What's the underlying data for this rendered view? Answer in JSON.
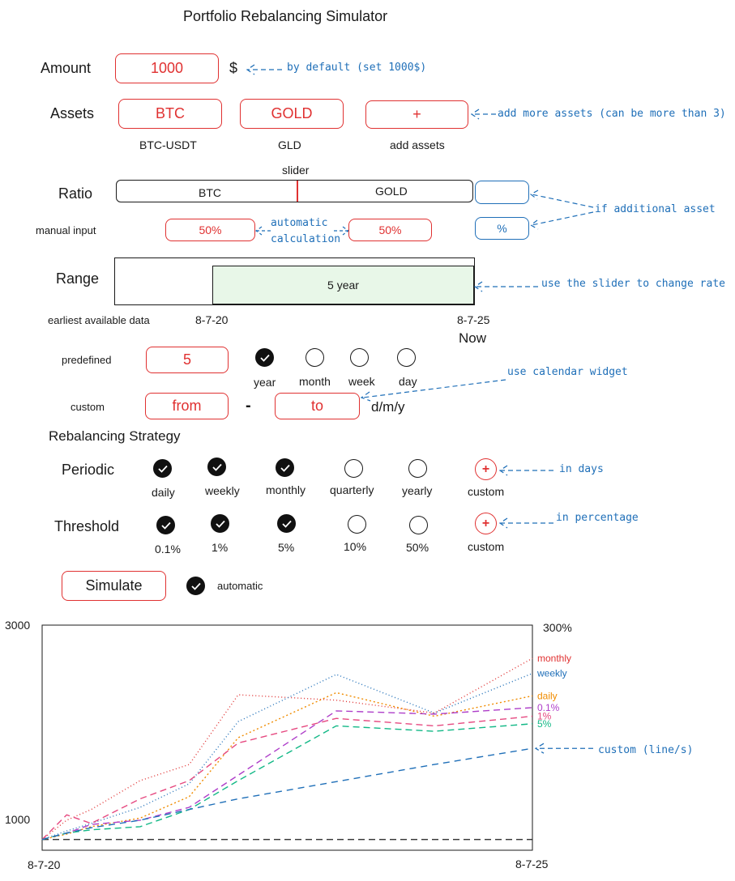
{
  "title": "Portfolio Rebalancing Simulator",
  "amount": {
    "label": "Amount",
    "value": "1000",
    "currency": "$",
    "note": "by default (set 1000$)"
  },
  "assets": {
    "label": "Assets",
    "items": [
      {
        "button": "BTC",
        "caption": "BTC-USDT"
      },
      {
        "button": "GOLD",
        "caption": "GLD"
      },
      {
        "button": "+",
        "caption": "add assets"
      }
    ],
    "note": "add more assets (can be more than 3)"
  },
  "ratio": {
    "slider_caption": "slider",
    "label": "Ratio",
    "left": "BTC",
    "right": "GOLD",
    "manual_label": "manual input",
    "left_pct": "50%",
    "right_pct": "50%",
    "auto_note_1": "automatic",
    "auto_note_2": "calculation",
    "extra_pct": "%",
    "extra_note": "if additional asset"
  },
  "range": {
    "label": "Range",
    "selected": "5 year",
    "earliest_label": "earliest available data",
    "start": "8-7-20",
    "end": "8-7-25",
    "now": "Now",
    "slider_note": "use the slider to change rate",
    "predefined_label": "predefined",
    "predefined_value": "5",
    "units": [
      {
        "label": "year",
        "checked": true
      },
      {
        "label": "month",
        "checked": false
      },
      {
        "label": "week",
        "checked": false
      },
      {
        "label": "day",
        "checked": false
      }
    ],
    "custom_label": "custom",
    "from": "from",
    "dash": "-",
    "to": "to",
    "date_format": "d/m/y",
    "calendar_note": "use calendar widget"
  },
  "strategy": {
    "heading": "Rebalancing Strategy",
    "periodic": {
      "label": "Periodic",
      "options": [
        {
          "label": "daily",
          "checked": true
        },
        {
          "label": "weekly",
          "checked": true
        },
        {
          "label": "monthly",
          "checked": true
        },
        {
          "label": "quarterly",
          "checked": false
        },
        {
          "label": "yearly",
          "checked": false
        }
      ],
      "custom": "custom",
      "note": "in days"
    },
    "threshold": {
      "label": "Threshold",
      "options": [
        {
          "label": "0.1%",
          "checked": true
        },
        {
          "label": "1%",
          "checked": true
        },
        {
          "label": "5%",
          "checked": true
        },
        {
          "label": "10%",
          "checked": false
        },
        {
          "label": "50%",
          "checked": false
        }
      ],
      "custom": "custom",
      "note": "in percentage"
    }
  },
  "simulate": {
    "button": "Simulate",
    "automatic": "automatic",
    "automatic_checked": true
  },
  "colors": {
    "accent_red": "#e03131",
    "accent_blue": "#1f6fb8",
    "range_fill": "#e8f7e8"
  },
  "chart_data": {
    "type": "line",
    "y_left_top": "3000",
    "y_left_bottom": "1000",
    "y_right_top": "300%",
    "x_start": "8-7-20",
    "x_end": "8-7-25",
    "x": [
      0,
      0.25,
      0.5,
      1.0,
      1.5,
      2.0,
      3.0,
      4.0,
      5.0
    ],
    "ylim": [
      900,
      3000
    ],
    "baseline": 1000,
    "series": [
      {
        "name": "monthly",
        "color": "#e03131",
        "dash": "1,3",
        "values": [
          1000,
          1180,
          1280,
          1550,
          1700,
          2350,
          2300,
          2180,
          2690
        ]
      },
      {
        "name": "weekly",
        "color": "#1f6fb8",
        "dash": "1,3",
        "values": [
          1000,
          1080,
          1150,
          1300,
          1520,
          2100,
          2540,
          2180,
          2550
        ]
      },
      {
        "name": "daily",
        "color": "#f08c00",
        "dash": "2,3",
        "values": [
          1000,
          1050,
          1120,
          1200,
          1400,
          1950,
          2370,
          2150,
          2340
        ]
      },
      {
        "name": "0.1%",
        "color": "#ae3ec9",
        "dash": "8,5",
        "values": [
          1000,
          1060,
          1140,
          1180,
          1300,
          1600,
          2200,
          2170,
          2230
        ]
      },
      {
        "name": "1%",
        "color": "#e64980",
        "dash": "8,5",
        "values": [
          1000,
          1230,
          1150,
          1380,
          1550,
          1900,
          2130,
          2060,
          2150
        ]
      },
      {
        "name": "5%",
        "color": "#12b886",
        "dash": "8,5",
        "values": [
          1000,
          1060,
          1090,
          1120,
          1280,
          1550,
          2060,
          2010,
          2080
        ]
      },
      {
        "name": "",
        "color": "#1f6fb8",
        "dash": "8,6",
        "values": [
          1000,
          1060,
          1110,
          1180,
          1280,
          1380,
          1540,
          1700,
          1850
        ]
      }
    ],
    "custom_note": "custom (line/s)"
  }
}
